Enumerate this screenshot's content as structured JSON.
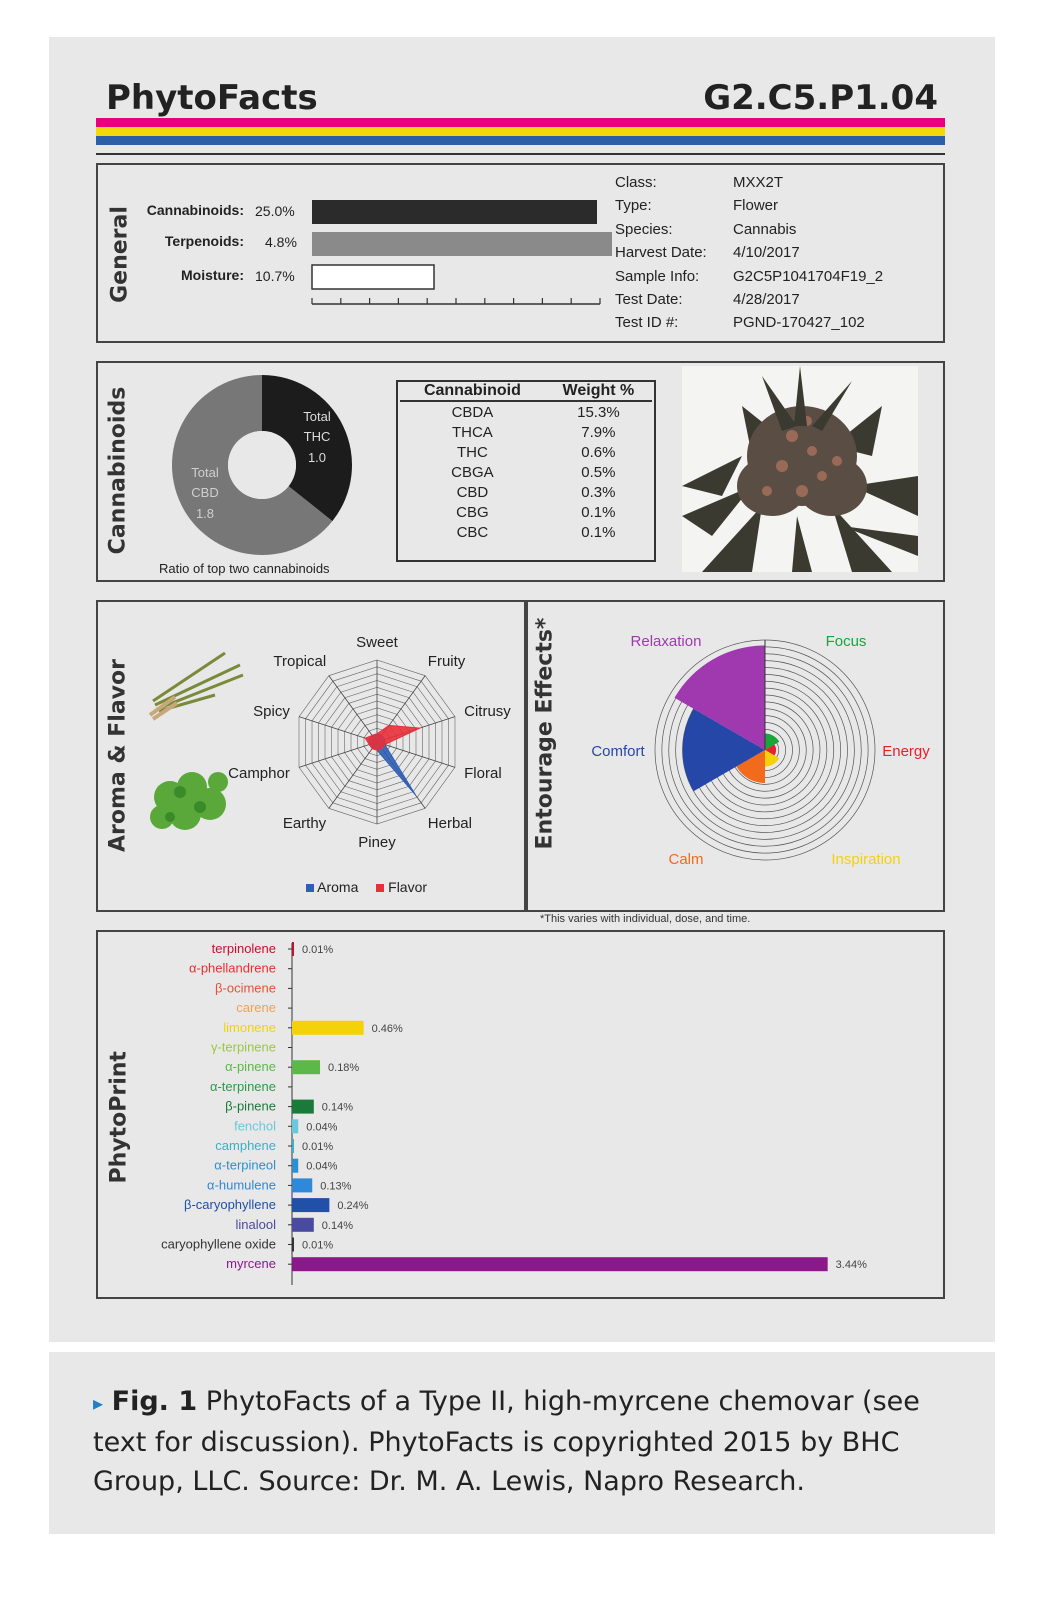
{
  "header": {
    "title": "PhytoFacts",
    "code": "G2.C5.P1.04"
  },
  "stripe_colors": [
    "#e6007e",
    "#f4d90a",
    "#2d5fa8"
  ],
  "sections": {
    "general": "General",
    "cannabinoids": "Cannabinoids",
    "aroma": "Aroma & Flavor",
    "entourage": "Entourage Effects",
    "entourage_mark": "*",
    "phytoprint": "PhytoPrint"
  },
  "general": {
    "rows": [
      {
        "label": "Cannabinoids:",
        "value": "25.0%",
        "fraction": 0.25,
        "color": "#2b2b2b"
      },
      {
        "label": "Terpenoids:",
        "value": "4.8%",
        "fraction": 0.048,
        "color": "#8a8a8a"
      },
      {
        "label": "Moisture:",
        "value": "10.7%",
        "fraction": 0.107,
        "color": "#ffffff"
      }
    ],
    "info": [
      {
        "key": "Class:",
        "value": "MXX2T"
      },
      {
        "key": "Type:",
        "value": "Flower"
      },
      {
        "key": "Species:",
        "value": "Cannabis"
      },
      {
        "key": "Harvest Date:",
        "value": "4/10/2017"
      },
      {
        "key": "Sample Info:",
        "value": "G2C5P1041704F19_2"
      },
      {
        "key": "Test Date:",
        "value": "4/28/2017"
      },
      {
        "key": "Test ID #:",
        "value": "PGND-170427_102"
      }
    ]
  },
  "cannabinoid_ratio": {
    "caption": "Ratio of top two cannabinoids",
    "thc": {
      "l1": "Total",
      "l2": "THC",
      "value": "1.0",
      "color": "#1c1c1c"
    },
    "cbd": {
      "l1": "Total",
      "l2": "CBD",
      "value": "1.8",
      "color": "#777777"
    }
  },
  "cannabinoid_table": {
    "headers": [
      "Cannabinoid",
      "Weight %"
    ],
    "rows": [
      [
        "CBDA",
        "15.3%"
      ],
      [
        "THCA",
        "7.9%"
      ],
      [
        "THC",
        "0.6%"
      ],
      [
        "CBGA",
        "0.5%"
      ],
      [
        "CBD",
        "0.3%"
      ],
      [
        "CBG",
        "0.1%"
      ],
      [
        "CBC",
        "0.1%"
      ]
    ]
  },
  "aroma_legend": {
    "aroma": "Aroma",
    "flavor": "Flavor",
    "aroma_color": "#2e5fb5",
    "flavor_color": "#e8303a"
  },
  "entourage_note": "*This varies with individual, dose, and time.",
  "chart_data": [
    {
      "type": "radar",
      "axes": [
        "Sweet",
        "Fruity",
        "Citrusy",
        "Floral",
        "Herbal",
        "Piney",
        "Earthy",
        "Camphor",
        "Spicy",
        "Tropical"
      ],
      "rmax": 1,
      "series": [
        {
          "name": "Aroma",
          "values": [
            0.1,
            0.1,
            0.1,
            0.1,
            0.8,
            0.1,
            0.1,
            0.1,
            0.1,
            0.1
          ]
        },
        {
          "name": "Flavor",
          "values": [
            0.1,
            0.25,
            0.55,
            0.1,
            0.1,
            0.1,
            0.1,
            0.1,
            0.15,
            0.1
          ]
        }
      ]
    },
    {
      "type": "polar-area",
      "categories": [
        "Focus",
        "Energy",
        "Inspiration",
        "Calm",
        "Comfort",
        "Relaxation"
      ],
      "colors": [
        "#1aa53b",
        "#e8202a",
        "#f4d20a",
        "#f26a1b",
        "#2547a8",
        "#a038b0"
      ],
      "values": [
        0.15,
        0.1,
        0.15,
        0.3,
        0.75,
        0.95
      ],
      "rmax": 1
    },
    {
      "type": "bar",
      "orientation": "horizontal",
      "categories": [
        "terpinolene",
        "α-phellandrene",
        "β-ocimene",
        "carene",
        "limonene",
        "γ-terpinene",
        "α-pinene",
        "α-terpinene",
        "β-pinene",
        "fenchol",
        "camphene",
        "α-terpineol",
        "α-humulene",
        "β-caryophyllene",
        "linalool",
        "caryophyllene oxide",
        "myrcene"
      ],
      "values": [
        0.01,
        null,
        null,
        null,
        0.46,
        null,
        0.18,
        null,
        0.14,
        0.04,
        0.01,
        0.04,
        0.13,
        0.24,
        0.14,
        0.01,
        3.44
      ],
      "labels": [
        "0.01%",
        "",
        "",
        "",
        "0.46%",
        "",
        "0.18%",
        "",
        "0.14%",
        "0.04%",
        "0.01%",
        "0.04%",
        "0.13%",
        "0.24%",
        "0.14%",
        "0.01%",
        "3.44%"
      ],
      "colors": [
        "#c8102e",
        "#e83030",
        "#e8503a",
        "#f0a050",
        "#f4d20a",
        "#9cc83c",
        "#5cb848",
        "#2e9a4a",
        "#1a7a3a",
        "#6ac8dc",
        "#3ab0c8",
        "#2a90d0",
        "#3088d8",
        "#2050a8",
        "#4a4aa0",
        "#333333",
        "#8a1a8a"
      ]
    }
  ],
  "caption": {
    "arrow": "▸",
    "fig": "Fig. 1",
    "text": "PhytoFacts of a Type II, high-myrcene chemovar (see text for discussion). PhytoFacts is copyrighted 2015 by BHC Group, LLC. Source: Dr. M. A. Lewis, Napro Research."
  }
}
